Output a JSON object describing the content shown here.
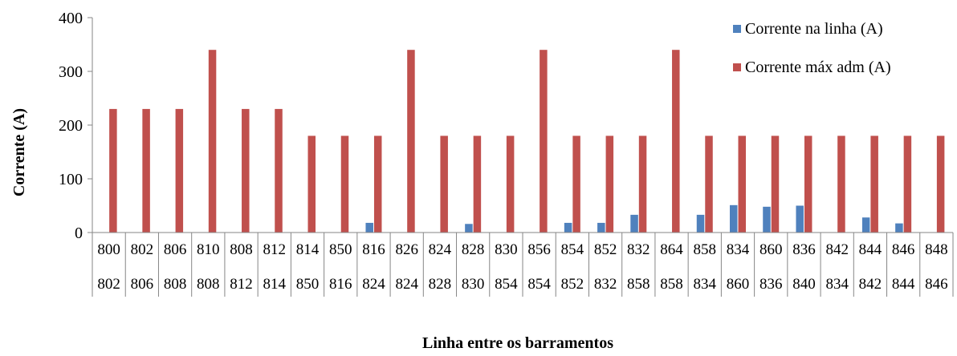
{
  "chart_data": {
    "type": "bar",
    "title": "",
    "xlabel": "Linha entre os barramentos",
    "ylabel": "Corrente (A)",
    "ylim": [
      0,
      400
    ],
    "yticks": [
      0,
      100,
      200,
      300,
      400
    ],
    "legend_position": "top-right",
    "categories": [
      [
        "800",
        "802"
      ],
      [
        "802",
        "806"
      ],
      [
        "806",
        "808"
      ],
      [
        "810",
        "808"
      ],
      [
        "808",
        "812"
      ],
      [
        "812",
        "814"
      ],
      [
        "814",
        "850"
      ],
      [
        "850",
        "816"
      ],
      [
        "816",
        "824"
      ],
      [
        "826",
        "824"
      ],
      [
        "824",
        "828"
      ],
      [
        "828",
        "830"
      ],
      [
        "830",
        "854"
      ],
      [
        "856",
        "854"
      ],
      [
        "854",
        "852"
      ],
      [
        "852",
        "832"
      ],
      [
        "832",
        "858"
      ],
      [
        "864",
        "858"
      ],
      [
        "858",
        "834"
      ],
      [
        "834",
        "860"
      ],
      [
        "860",
        "836"
      ],
      [
        "836",
        "840"
      ],
      [
        "842",
        "834"
      ],
      [
        "844",
        "842"
      ],
      [
        "846",
        "844"
      ],
      [
        "848",
        "846"
      ]
    ],
    "series": [
      {
        "name": "Corrente na linha (A)",
        "color": "#4F81BD",
        "values": [
          0,
          0,
          0,
          0,
          0,
          0,
          0,
          0,
          18,
          0,
          0,
          16,
          0,
          0,
          18,
          18,
          33,
          0,
          33,
          51,
          48,
          50,
          0,
          28,
          17,
          0
        ]
      },
      {
        "name": "Corrente máx adm (A)",
        "color": "#C0504D",
        "values": [
          230,
          230,
          230,
          340,
          230,
          230,
          180,
          180,
          180,
          340,
          180,
          180,
          180,
          340,
          180,
          180,
          180,
          340,
          180,
          180,
          180,
          180,
          180,
          180,
          180,
          180
        ]
      }
    ]
  }
}
